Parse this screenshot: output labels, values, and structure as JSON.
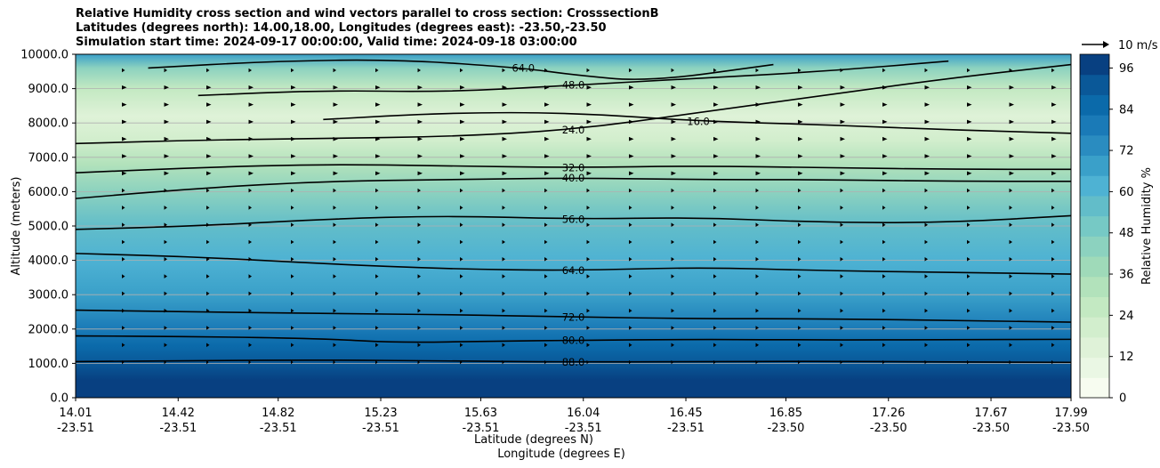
{
  "chart_data": {
    "type": "heatmap",
    "title_lines": [
      "Relative Humidity cross section and wind vectors parallel to cross section: CrosssectionB",
      "Latitudes (degrees north): 14.00,18.00, Longitudes (degrees east): -23.50,-23.50",
      "Simulation start time: 2024-09-17 00:00:00, Valid time: 2024-09-18 03:00:00"
    ],
    "ylabel": "Altitude (meters)",
    "xlabel_lines": [
      "Latitude (degrees N)",
      "Longitude (degrees E)"
    ],
    "ylim": [
      0,
      10000
    ],
    "y_ticks": [
      "0.0",
      "1000.0",
      "2000.0",
      "3000.0",
      "4000.0",
      "5000.0",
      "6000.0",
      "7000.0",
      "8000.0",
      "9000.0",
      "10000.0"
    ],
    "x_ticks": [
      {
        "lat": "14.01",
        "lon": "-23.51"
      },
      {
        "lat": "14.42",
        "lon": "-23.51"
      },
      {
        "lat": "14.82",
        "lon": "-23.51"
      },
      {
        "lat": "15.23",
        "lon": "-23.51"
      },
      {
        "lat": "15.63",
        "lon": "-23.51"
      },
      {
        "lat": "16.04",
        "lon": "-23.51"
      },
      {
        "lat": "16.45",
        "lon": "-23.51"
      },
      {
        "lat": "16.85",
        "lon": "-23.50"
      },
      {
        "lat": "17.26",
        "lon": "-23.50"
      },
      {
        "lat": "17.67",
        "lon": "-23.50"
      },
      {
        "lat": "17.99",
        "lon": "-23.50"
      }
    ],
    "x_range": [
      14.01,
      17.99
    ],
    "colorbar": {
      "label": "Relative Humidity %",
      "ticks": [
        "0",
        "12",
        "24",
        "36",
        "48",
        "60",
        "72",
        "84",
        "96"
      ],
      "range": [
        0,
        100
      ],
      "colors": [
        "#f7fcf0",
        "#eaf7e4",
        "#dff2d8",
        "#d2eecd",
        "#c3e9c2",
        "#b2e2bb",
        "#9fdab9",
        "#8cd2bf",
        "#76c9c5",
        "#62bdc9",
        "#4eb2d3",
        "#3aa0c9",
        "#2a8cc0",
        "#1a7ab7",
        "#0b6aaa",
        "#0a5898",
        "#084081"
      ]
    },
    "wind_key": {
      "label": "10 m/s"
    },
    "rh_profile": [
      {
        "z": 0,
        "rh": 97
      },
      {
        "z": 500,
        "rh": 95
      },
      {
        "z": 1000,
        "rh": 90
      },
      {
        "z": 1500,
        "rh": 85
      },
      {
        "z": 2000,
        "rh": 78
      },
      {
        "z": 3000,
        "rh": 68
      },
      {
        "z": 4000,
        "rh": 63
      },
      {
        "z": 5000,
        "rh": 58
      },
      {
        "z": 6000,
        "rh": 46
      },
      {
        "z": 6800,
        "rh": 35
      },
      {
        "z": 7500,
        "rh": 22
      },
      {
        "z": 8200,
        "rh": 16
      },
      {
        "z": 9000,
        "rh": 25
      },
      {
        "z": 9600,
        "rh": 45
      },
      {
        "z": 10000,
        "rh": 70
      }
    ],
    "contours": [
      {
        "label": "88.0",
        "points": [
          [
            14.01,
            1050
          ],
          [
            14.5,
            1080
          ],
          [
            15.0,
            1100
          ],
          [
            15.5,
            1070
          ],
          [
            16.0,
            1040
          ],
          [
            16.5,
            1050
          ],
          [
            17.0,
            1060
          ],
          [
            17.5,
            1040
          ],
          [
            17.99,
            1030
          ]
        ]
      },
      {
        "label": "80.0",
        "points": [
          [
            14.01,
            1800
          ],
          [
            14.5,
            1780
          ],
          [
            15.0,
            1720
          ],
          [
            15.3,
            1600
          ],
          [
            15.7,
            1650
          ],
          [
            16.0,
            1670
          ],
          [
            16.5,
            1700
          ],
          [
            17.0,
            1680
          ],
          [
            17.5,
            1690
          ],
          [
            17.99,
            1700
          ]
        ]
      },
      {
        "label": "72.0",
        "points": [
          [
            14.01,
            2550
          ],
          [
            14.5,
            2500
          ],
          [
            15.0,
            2450
          ],
          [
            15.5,
            2420
          ],
          [
            16.0,
            2350
          ],
          [
            16.5,
            2300
          ],
          [
            17.0,
            2300
          ],
          [
            17.5,
            2250
          ],
          [
            17.99,
            2200
          ]
        ]
      },
      {
        "label": "64.0",
        "points": [
          [
            14.01,
            4200
          ],
          [
            14.5,
            4100
          ],
          [
            15.0,
            3900
          ],
          [
            15.5,
            3750
          ],
          [
            16.0,
            3700
          ],
          [
            16.5,
            3800
          ],
          [
            17.0,
            3700
          ],
          [
            17.5,
            3650
          ],
          [
            17.99,
            3600
          ]
        ]
      },
      {
        "label": "56.0",
        "points": [
          [
            14.01,
            4900
          ],
          [
            14.5,
            5000
          ],
          [
            15.0,
            5200
          ],
          [
            15.5,
            5300
          ],
          [
            16.0,
            5200
          ],
          [
            16.5,
            5250
          ],
          [
            17.0,
            5100
          ],
          [
            17.5,
            5100
          ],
          [
            17.99,
            5300
          ]
        ]
      },
      {
        "label": "40.0",
        "points": [
          [
            14.01,
            5800
          ],
          [
            14.5,
            6100
          ],
          [
            15.0,
            6300
          ],
          [
            15.5,
            6350
          ],
          [
            16.0,
            6400
          ],
          [
            16.5,
            6350
          ],
          [
            17.0,
            6350
          ],
          [
            17.5,
            6300
          ],
          [
            17.99,
            6300
          ]
        ]
      },
      {
        "label": "32.0",
        "points": [
          [
            14.01,
            6550
          ],
          [
            14.5,
            6700
          ],
          [
            15.0,
            6800
          ],
          [
            15.5,
            6750
          ],
          [
            16.0,
            6700
          ],
          [
            16.5,
            6750
          ],
          [
            17.0,
            6700
          ],
          [
            17.5,
            6650
          ],
          [
            17.99,
            6650
          ]
        ]
      },
      {
        "label": "24.0",
        "points": [
          [
            14.01,
            7400
          ],
          [
            14.5,
            7500
          ],
          [
            15.0,
            7550
          ],
          [
            15.5,
            7600
          ],
          [
            16.0,
            7800
          ],
          [
            16.5,
            8300
          ],
          [
            17.0,
            8800
          ],
          [
            17.5,
            9300
          ],
          [
            17.99,
            9700
          ]
        ]
      },
      {
        "label": "16.0",
        "points": [
          [
            15.0,
            8100
          ],
          [
            15.5,
            8300
          ],
          [
            16.0,
            8300
          ],
          [
            16.5,
            8050
          ],
          [
            17.0,
            7950
          ],
          [
            17.5,
            7800
          ],
          [
            17.99,
            7700
          ]
        ]
      },
      {
        "label": "48.0",
        "points": [
          [
            14.5,
            8800
          ],
          [
            15.0,
            8950
          ],
          [
            15.5,
            8900
          ],
          [
            16.0,
            9100
          ],
          [
            16.5,
            9300
          ],
          [
            17.0,
            9500
          ],
          [
            17.5,
            9800
          ]
        ]
      },
      {
        "label": "64.0",
        "points": [
          [
            14.3,
            9600
          ],
          [
            14.8,
            9800
          ],
          [
            15.3,
            9850
          ],
          [
            15.8,
            9600
          ],
          [
            16.0,
            9400
          ],
          [
            16.3,
            9200
          ],
          [
            16.8,
            9700
          ]
        ]
      }
    ]
  }
}
